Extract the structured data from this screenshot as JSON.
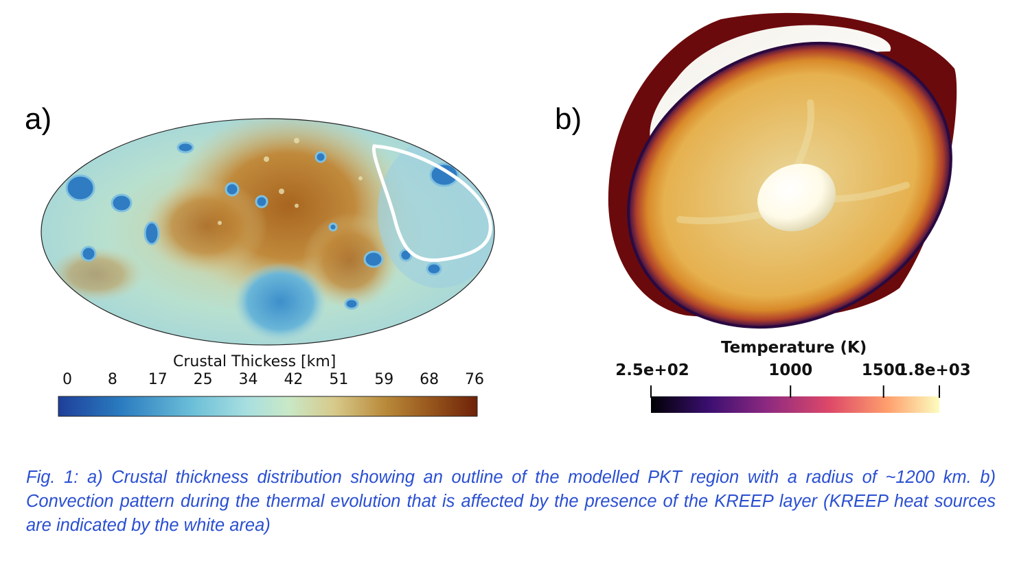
{
  "panel_a": {
    "label": "a)",
    "colorbar": {
      "title": "Crustal Thickess [km]",
      "ticks": [
        "0",
        "8",
        "17",
        "25",
        "34",
        "42",
        "51",
        "59",
        "68",
        "76"
      ],
      "colors": [
        "#1e3f9a",
        "#2a7cc0",
        "#6cbfd8",
        "#a8dfe0",
        "#c9e8c6",
        "#d7c98a",
        "#b98a3a",
        "#9a5a1e",
        "#6e2208"
      ]
    }
  },
  "panel_b": {
    "label": "b)",
    "colorbar": {
      "title": "Temperature (K)",
      "ticks": [
        "2.5e+02",
        "1000",
        "1500",
        "1.8e+03"
      ],
      "tick_values": [
        250,
        1000,
        1500,
        1800
      ],
      "range": [
        250,
        1800
      ],
      "colors": [
        "#000004",
        "#3b0f70",
        "#8c2981",
        "#de4968",
        "#fe9f6d",
        "#fcfdbf"
      ]
    }
  },
  "caption": "Fig. 1: a) Crustal thickness distribution showing an outline of the modelled PKT region with a radius of ~1200 km. b) Convection pattern during the thermal evolution that is affected by the presence of the KREEP layer (KREEP heat sources are indicated by the white area)"
}
